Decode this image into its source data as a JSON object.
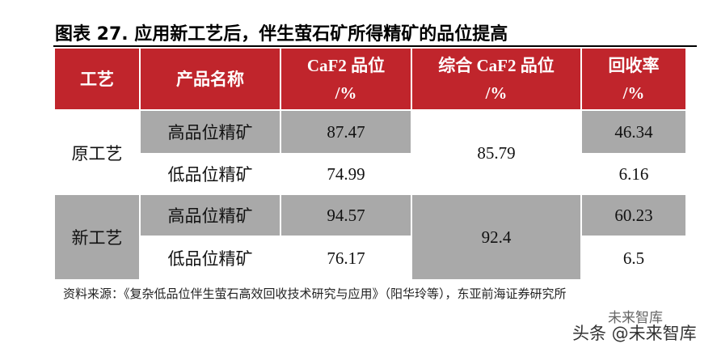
{
  "title": "图表 27. 应用新工艺后，伴生萤石矿所得精矿的品位提高",
  "table": {
    "header": [
      [
        "工艺"
      ],
      [
        "产品名称"
      ],
      [
        "CaF2 品位",
        "/%"
      ],
      [
        "综合 CaF2 品位",
        "/%"
      ],
      [
        "回收率",
        "/%"
      ]
    ],
    "groups": [
      {
        "process": "原工艺",
        "combined": 85.79,
        "rows": [
          {
            "product": "高品位精矿",
            "grade": 87.47,
            "recovery": 46.34
          },
          {
            "product": "低品位精矿",
            "grade": 74.99,
            "recovery": 6.16
          }
        ]
      },
      {
        "process": "新工艺",
        "combined": 92.4,
        "rows": [
          {
            "product": "高品位精矿",
            "grade": 94.57,
            "recovery": 60.23
          },
          {
            "product": "低品位精矿",
            "grade": 76.17,
            "recovery": 6.5
          }
        ]
      }
    ]
  },
  "source": "资料来源：《复杂低品位伴生萤石高效回收技术研究与应用》（阳华玲等），东亚前海证券研究所",
  "watermark": {
    "logo": "未来智库",
    "text": "头条 @未来智库"
  }
}
